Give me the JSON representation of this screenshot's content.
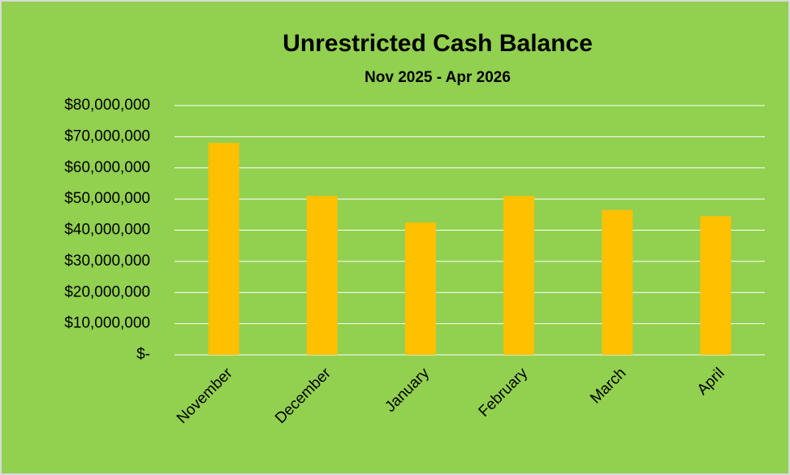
{
  "chart_data": {
    "type": "bar",
    "title": "Unrestricted Cash Balance",
    "subtitle": "Nov 2025 - Apr 2026",
    "categories": [
      "November",
      "December",
      "January",
      "February",
      "March",
      "April"
    ],
    "values": [
      68000000,
      51000000,
      42500000,
      51000000,
      46500000,
      44500000
    ],
    "color": "#ffc000",
    "background": "#92d050",
    "grid": true,
    "ylim": [
      0,
      80000000
    ],
    "yticks": [
      {
        "value": 0,
        "label": "$-"
      },
      {
        "value": 10000000,
        "label": "$10,000,000"
      },
      {
        "value": 20000000,
        "label": "$20,000,000"
      },
      {
        "value": 30000000,
        "label": "$30,000,000"
      },
      {
        "value": 40000000,
        "label": "$40,000,000"
      },
      {
        "value": 50000000,
        "label": "$50,000,000"
      },
      {
        "value": 60000000,
        "label": "$60,000,000"
      },
      {
        "value": 70000000,
        "label": "$70,000,000"
      },
      {
        "value": 80000000,
        "label": "$80,000,000"
      }
    ]
  }
}
